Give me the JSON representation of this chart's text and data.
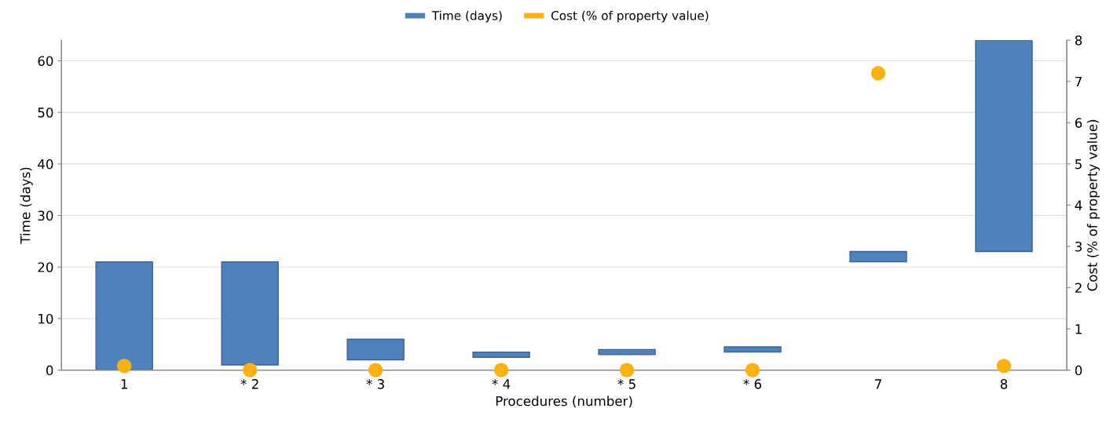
{
  "chart_data": {
    "type": "bar",
    "xlabel": "Procedures (number)",
    "ylabel": "Time (days)",
    "y2label": "Cost (% of property value)",
    "categories": [
      "1",
      "* 2",
      "* 3",
      "* 4",
      "* 5",
      "* 6",
      "7",
      "8"
    ],
    "series": [
      {
        "name": "Time (days)",
        "color": "#4f81bd",
        "base": [
          0,
          1,
          2,
          2.5,
          3,
          3.5,
          21,
          23
        ],
        "values": [
          21,
          20,
          4,
          1,
          1,
          1,
          2,
          41
        ]
      },
      {
        "name": "Cost (% of property value)",
        "type": "scatter",
        "axis": "y2",
        "color": "#ffb20f",
        "values": [
          0.1,
          0,
          0,
          0,
          0,
          0,
          7.2,
          0.1
        ]
      }
    ],
    "ylim": [
      0,
      64
    ],
    "yticks": [
      0,
      10,
      20,
      30,
      40,
      50,
      60
    ],
    "y2lim": [
      0,
      8
    ],
    "y2ticks": [
      0,
      1,
      2,
      3,
      4,
      5,
      6,
      7,
      8
    ],
    "grid": "y",
    "legend": "top",
    "marker": "circle"
  }
}
